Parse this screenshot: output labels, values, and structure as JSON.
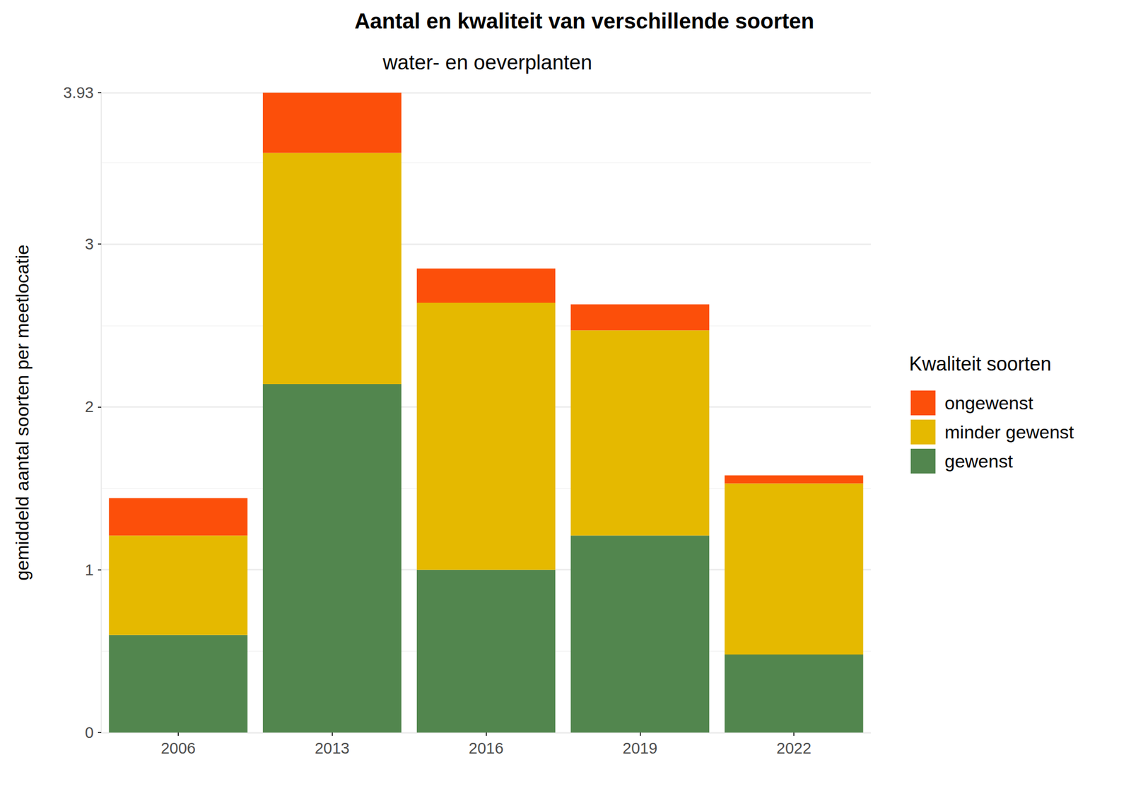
{
  "chart_data": {
    "type": "bar",
    "title": "Aantal en kwaliteit van verschillende soorten",
    "subtitle": "water- en oeverplanten",
    "y_label": "gemiddeld aantal soorten per meetlocatie",
    "legend_title": "Kwaliteit soorten",
    "categories": [
      "2006",
      "2013",
      "2016",
      "2019",
      "2022"
    ],
    "series": [
      {
        "name": "gewenst",
        "color": "#52864E",
        "values": [
          0.6,
          2.14,
          1.0,
          1.21,
          0.48
        ]
      },
      {
        "name": "minder gewenst",
        "color": "#E5B900",
        "values": [
          0.61,
          1.42,
          1.64,
          1.26,
          1.05
        ]
      },
      {
        "name": "ongewenst",
        "color": "#FC4F0A",
        "values": [
          0.23,
          0.37,
          0.21,
          0.16,
          0.05
        ]
      }
    ],
    "ylim": [
      0,
      3.93
    ],
    "yticks": [
      0,
      1,
      2,
      3
    ],
    "stacked": true,
    "grid": true,
    "legend": "right"
  }
}
